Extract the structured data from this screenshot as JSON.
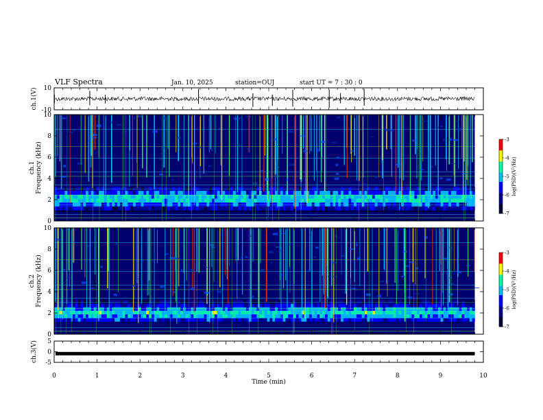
{
  "header": {
    "title": "VLF Spectra",
    "date": "Jan. 10, 2025",
    "station": "station=OUJ",
    "start_ut": "start UT =  7 : 30 : 0"
  },
  "chart_data": [
    {
      "type": "line",
      "panel": "ch1-waveform",
      "ylabel": "ch.1(V)",
      "ylim": [
        -10,
        10
      ],
      "y_ticks": [
        "10",
        "-10"
      ],
      "xlim": [
        0,
        10
      ],
      "baseline_value": 0,
      "color": "#000000"
    },
    {
      "type": "heatmap",
      "panel": "ch1-spectrogram",
      "ylabel_line1": "ch.1",
      "ylabel_line2": "Frequency (kHz)",
      "ylim": [
        0,
        10
      ],
      "y_ticks": [
        "0",
        "2",
        "4",
        "6",
        "8",
        "10"
      ],
      "xlim": [
        0,
        10
      ],
      "data_end_min": 9.8,
      "colorbar": {
        "range": [
          -7,
          -3
        ],
        "ticks": [
          "-3",
          "-4",
          "-5",
          "-6",
          "-7"
        ],
        "label": "log(PSD)(V²/Hz)"
      },
      "low_band_khz": [
        1.0,
        3.2
      ],
      "band_peak_khz": 2.1
    },
    {
      "type": "heatmap",
      "panel": "ch2-spectrogram",
      "ylabel_line1": "ch.2",
      "ylabel_line2": "Frequency (kHz)",
      "ylim": [
        0,
        10
      ],
      "y_ticks": [
        "0",
        "2",
        "4",
        "6",
        "8",
        "10"
      ],
      "xlim": [
        0,
        10
      ],
      "data_end_min": 9.8,
      "colorbar": {
        "range": [
          -7,
          -3
        ],
        "ticks": [
          "-3",
          "-4",
          "-5",
          "-6",
          "-7"
        ],
        "label": "log(PSD)(V²/Hz)"
      },
      "low_band_khz": [
        1.2,
        3.2
      ],
      "band_peak_khz": 2.0
    },
    {
      "type": "line",
      "panel": "ch3-waveform",
      "ylabel": "ch.3(V)",
      "ylim": [
        -5,
        5
      ],
      "y_ticks": [
        "5",
        "0",
        "-5"
      ],
      "xlim": [
        0,
        10
      ],
      "baseline_value": -0.9,
      "color": "#000000"
    }
  ],
  "x_axis": {
    "label": "Time (min)",
    "ticks": [
      "0",
      "1",
      "2",
      "3",
      "4",
      "5",
      "6",
      "7",
      "8",
      "9",
      "10"
    ]
  },
  "colors": {
    "background": "#ffffff",
    "axes": "#000000",
    "colormap": [
      "#000033",
      "#00008b",
      "#0000ff",
      "#00bfff",
      "#00ffaa",
      "#ffff00",
      "#ff0000",
      "#ffffff"
    ]
  }
}
